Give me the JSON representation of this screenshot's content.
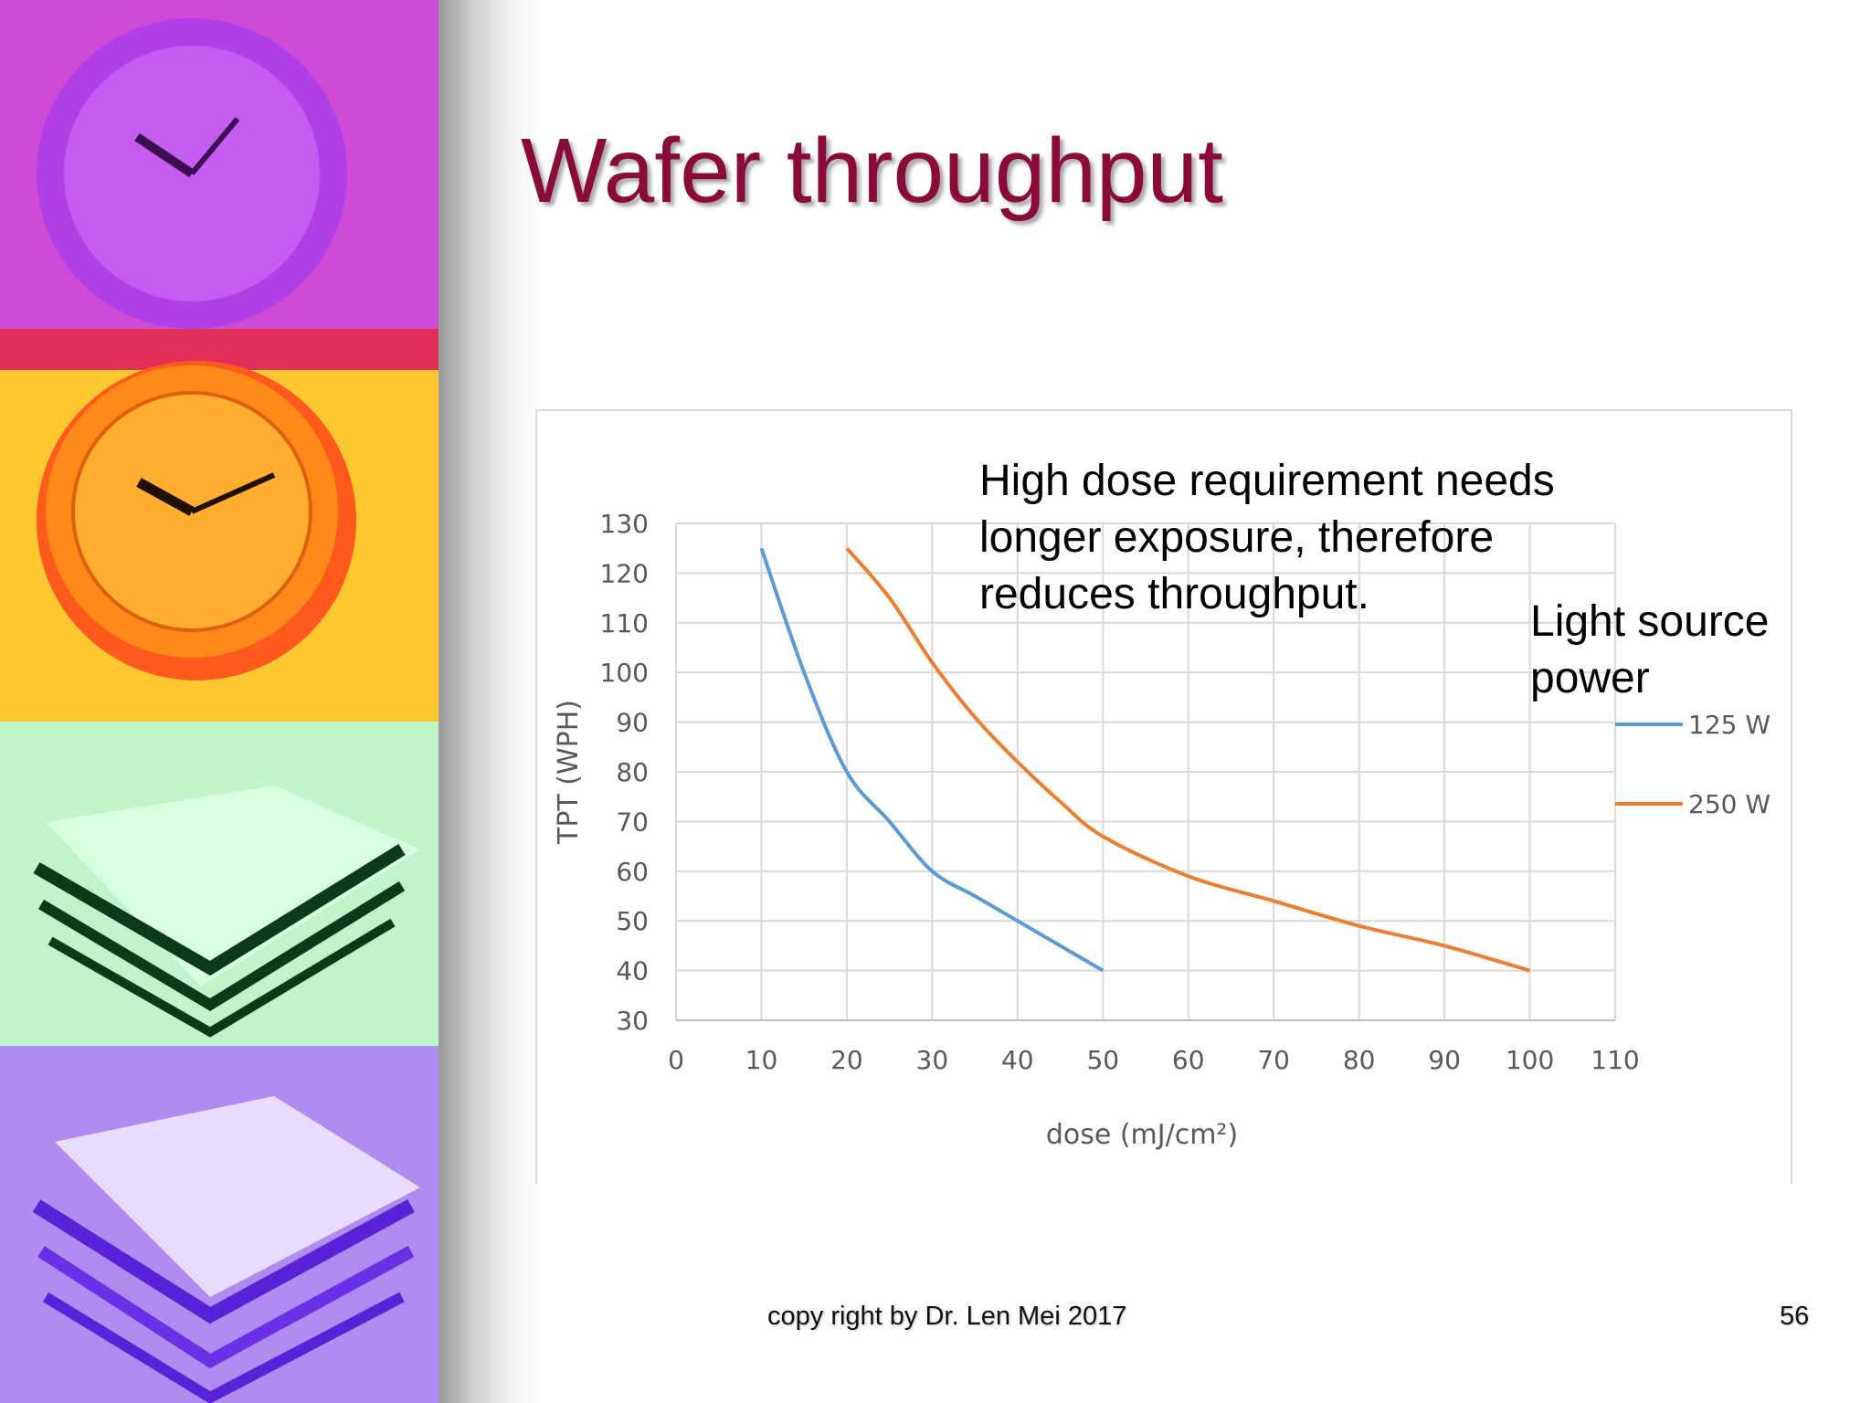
{
  "slide": {
    "title": "Wafer throughput",
    "annotation": [
      "High dose requirement needs",
      "longer exposure, therefore",
      "reduces throughput."
    ],
    "legend_title": [
      "Light source",
      "power"
    ],
    "footer": "copy right by Dr. Len Mei 2017",
    "page_number": "56"
  },
  "chart_data": {
    "type": "line",
    "xlabel": "dose (mJ/cm²)",
    "ylabel": "TPT (WPH)",
    "xlim": [
      0,
      110
    ],
    "ylim": [
      30,
      130
    ],
    "xticks": [
      0,
      10,
      20,
      30,
      40,
      50,
      60,
      70,
      80,
      90,
      100,
      110
    ],
    "yticks": [
      30,
      40,
      50,
      60,
      70,
      80,
      90,
      100,
      110,
      120,
      130
    ],
    "grid": true,
    "legend_position": "right",
    "series": [
      {
        "name": "125 W",
        "color": "#5b9bd5",
        "x": [
          10,
          15,
          20,
          25,
          30,
          35,
          40,
          45,
          50
        ],
        "y": [
          125,
          100,
          80,
          70,
          60,
          55,
          50,
          45,
          40
        ]
      },
      {
        "name": "250 W",
        "color": "#ed7d31",
        "x": [
          20,
          25,
          30,
          35,
          40,
          45,
          50,
          60,
          70,
          80,
          90,
          100
        ],
        "y": [
          125,
          115,
          102,
          91,
          82,
          74,
          67,
          59,
          54,
          49,
          45,
          40
        ]
      }
    ]
  }
}
